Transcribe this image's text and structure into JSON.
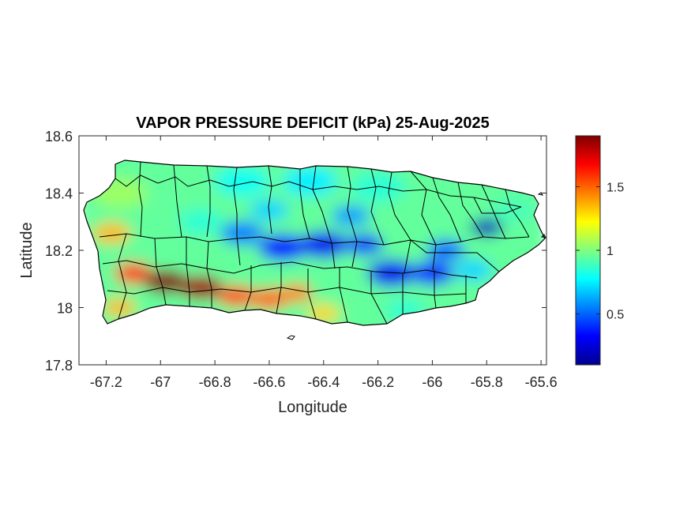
{
  "figure": {
    "title": "VAPOR PRESSURE DEFICIT (kPa) 25-Aug-2025",
    "xlabel": "Longitude",
    "ylabel": "Latitude",
    "xticks": [
      {
        "value": -67.2,
        "label": "-67.2"
      },
      {
        "value": -67.0,
        "label": "-67"
      },
      {
        "value": -66.8,
        "label": "-66.8"
      },
      {
        "value": -66.6,
        "label": "-66.6"
      },
      {
        "value": -66.4,
        "label": "-66.4"
      },
      {
        "value": -66.2,
        "label": "-66.2"
      },
      {
        "value": -66.0,
        "label": "-66"
      },
      {
        "value": -65.8,
        "label": "-65.8"
      },
      {
        "value": -65.6,
        "label": "-65.6"
      }
    ],
    "yticks": [
      {
        "value": 17.8,
        "label": "17.8"
      },
      {
        "value": 18.0,
        "label": "18"
      },
      {
        "value": 18.2,
        "label": "18.2"
      },
      {
        "value": 18.4,
        "label": "18.4"
      },
      {
        "value": 18.6,
        "label": "18.6"
      }
    ],
    "xlim": [
      -67.3,
      -65.58
    ],
    "ylim": [
      17.8,
      18.6
    ]
  },
  "colorbar": {
    "colormap": "jet",
    "range": [
      0.1,
      1.9
    ],
    "ticks": [
      {
        "value": 0.5,
        "label": "0.5"
      },
      {
        "value": 1.0,
        "label": "1"
      },
      {
        "value": 1.5,
        "label": "1.5"
      }
    ]
  },
  "map": {
    "region": "Puerto Rico",
    "outline_color": "#000000",
    "field_blobs": [
      {
        "lon": -67.15,
        "lat": 18.4,
        "vpd": 1.05,
        "r": 0.1
      },
      {
        "lon": -67.18,
        "lat": 18.26,
        "vpd": 1.35,
        "r": 0.07
      },
      {
        "lon": -66.95,
        "lat": 18.44,
        "vpd": 0.95,
        "r": 0.1
      },
      {
        "lon": -66.7,
        "lat": 18.44,
        "vpd": 0.8,
        "r": 0.1
      },
      {
        "lon": -66.45,
        "lat": 18.44,
        "vpd": 0.75,
        "r": 0.1
      },
      {
        "lon": -66.2,
        "lat": 18.42,
        "vpd": 0.85,
        "r": 0.1
      },
      {
        "lon": -65.95,
        "lat": 18.4,
        "vpd": 0.95,
        "r": 0.1
      },
      {
        "lon": -65.7,
        "lat": 18.34,
        "vpd": 0.9,
        "r": 0.08
      },
      {
        "lon": -66.85,
        "lat": 18.3,
        "vpd": 0.85,
        "r": 0.08
      },
      {
        "lon": -66.7,
        "lat": 18.26,
        "vpd": 0.55,
        "r": 0.08
      },
      {
        "lon": -66.55,
        "lat": 18.21,
        "vpd": 0.35,
        "r": 0.09
      },
      {
        "lon": -66.4,
        "lat": 18.22,
        "vpd": 0.3,
        "r": 0.09
      },
      {
        "lon": -66.25,
        "lat": 18.22,
        "vpd": 0.4,
        "r": 0.07
      },
      {
        "lon": -66.15,
        "lat": 18.12,
        "vpd": 0.3,
        "r": 0.09
      },
      {
        "lon": -66.0,
        "lat": 18.12,
        "vpd": 0.35,
        "r": 0.08
      },
      {
        "lon": -65.95,
        "lat": 18.2,
        "vpd": 0.5,
        "r": 0.07
      },
      {
        "lon": -65.8,
        "lat": 18.28,
        "vpd": 0.2,
        "r": 0.06
      },
      {
        "lon": -65.85,
        "lat": 18.13,
        "vpd": 0.7,
        "r": 0.07
      },
      {
        "lon": -66.3,
        "lat": 18.02,
        "vpd": 0.95,
        "r": 0.07
      },
      {
        "lon": -66.1,
        "lat": 17.99,
        "vpd": 0.85,
        "r": 0.07
      },
      {
        "lon": -67.1,
        "lat": 18.12,
        "vpd": 1.6,
        "r": 0.07
      },
      {
        "lon": -66.98,
        "lat": 18.09,
        "vpd": 1.9,
        "r": 0.08
      },
      {
        "lon": -66.85,
        "lat": 18.07,
        "vpd": 1.85,
        "r": 0.08
      },
      {
        "lon": -66.72,
        "lat": 18.04,
        "vpd": 1.55,
        "r": 0.07
      },
      {
        "lon": -66.6,
        "lat": 18.03,
        "vpd": 1.5,
        "r": 0.07
      },
      {
        "lon": -66.5,
        "lat": 18.05,
        "vpd": 1.45,
        "r": 0.06
      },
      {
        "lon": -66.4,
        "lat": 17.98,
        "vpd": 1.3,
        "r": 0.06
      },
      {
        "lon": -67.15,
        "lat": 18.0,
        "vpd": 1.35,
        "r": 0.06
      },
      {
        "lon": -66.3,
        "lat": 18.32,
        "vpd": 0.6,
        "r": 0.07
      },
      {
        "lon": -66.6,
        "lat": 18.34,
        "vpd": 0.7,
        "r": 0.07
      }
    ]
  }
}
